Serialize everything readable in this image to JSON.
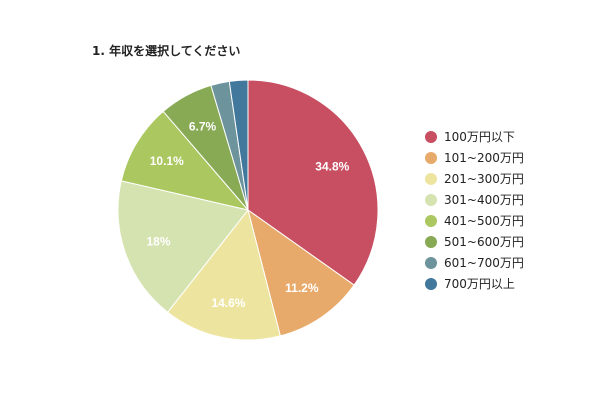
{
  "chart_data": {
    "type": "pie",
    "title": "1. 年収を選択してください",
    "categories": [
      "100万円以下",
      "101~200万円",
      "201~300万円",
      "301~400万円",
      "401~500万円",
      "501~600万円",
      "601~700万円",
      "700万円以上"
    ],
    "values": [
      34.8,
      11.2,
      14.6,
      18,
      10.1,
      6.7,
      2.3,
      2.3
    ],
    "data_labels": [
      "34.8%",
      "11.2%",
      "14.6%",
      "18%",
      "10.1%",
      "6.7%",
      "",
      ""
    ],
    "colors": [
      "#c84f61",
      "#e8aa6b",
      "#ede59f",
      "#d4e3b0",
      "#abc760",
      "#88aa55",
      "#6d939c",
      "#41789c"
    ],
    "legend_position": "right"
  }
}
